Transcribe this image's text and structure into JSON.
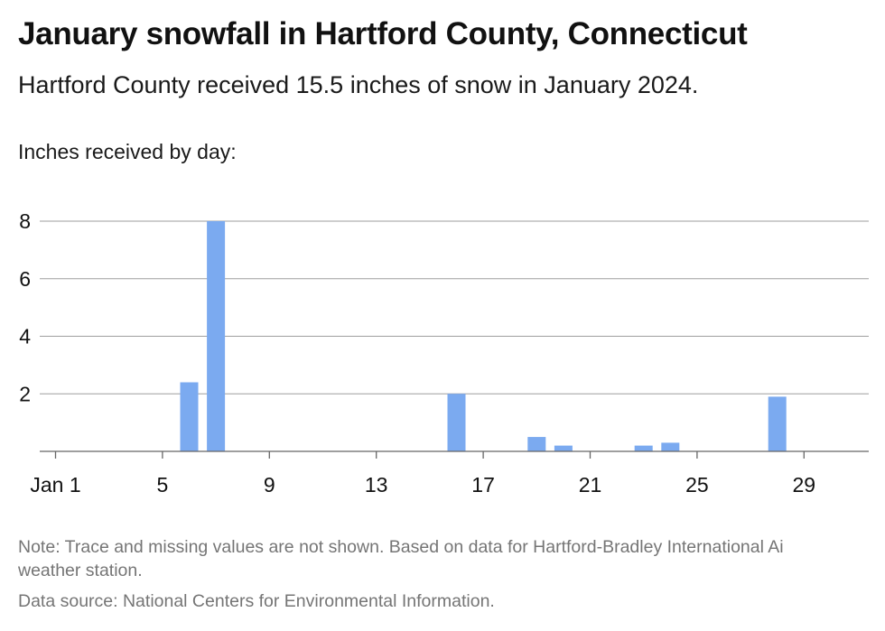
{
  "header": {
    "title": "January snowfall in Hartford County, Connecticut",
    "subtitle": "Hartford County received 15.5 inches of snow in January 2024."
  },
  "footer": {
    "note": "Note: Trace and missing values are not shown. Based on data for Hartford-Bradley International Ai weather station.",
    "source": "Data source: National Centers for Environmental Information."
  },
  "colors": {
    "bar": "#7baaf0",
    "gridline": "#9e9e9e",
    "axis": "#666666",
    "text": "#111111",
    "muted": "#757575"
  },
  "chart_data": {
    "type": "bar",
    "title": "January snowfall in Hartford County, Connecticut",
    "subtitle": "Hartford County received 15.5 inches of snow in January 2024.",
    "ylabel": "Inches received by day:",
    "xlabel": "",
    "x_range": [
      1,
      31
    ],
    "ylim": [
      0,
      8
    ],
    "y_ticks": [
      2,
      4,
      6,
      8
    ],
    "x_ticks": [
      {
        "day": 1,
        "label": "Jan 1"
      },
      {
        "day": 5,
        "label": "5"
      },
      {
        "day": 9,
        "label": "9"
      },
      {
        "day": 13,
        "label": "13"
      },
      {
        "day": 17,
        "label": "17"
      },
      {
        "day": 21,
        "label": "21"
      },
      {
        "day": 25,
        "label": "25"
      },
      {
        "day": 29,
        "label": "29"
      }
    ],
    "grid": true,
    "legend": "none",
    "series": [
      {
        "points": [
          {
            "day": 6,
            "value": 2.4
          },
          {
            "day": 7,
            "value": 8.0
          },
          {
            "day": 16,
            "value": 2.0
          },
          {
            "day": 19,
            "value": 0.5
          },
          {
            "day": 20,
            "value": 0.2
          },
          {
            "day": 23,
            "value": 0.2
          },
          {
            "day": 24,
            "value": 0.3
          },
          {
            "day": 28,
            "value": 1.9
          }
        ]
      }
    ]
  }
}
